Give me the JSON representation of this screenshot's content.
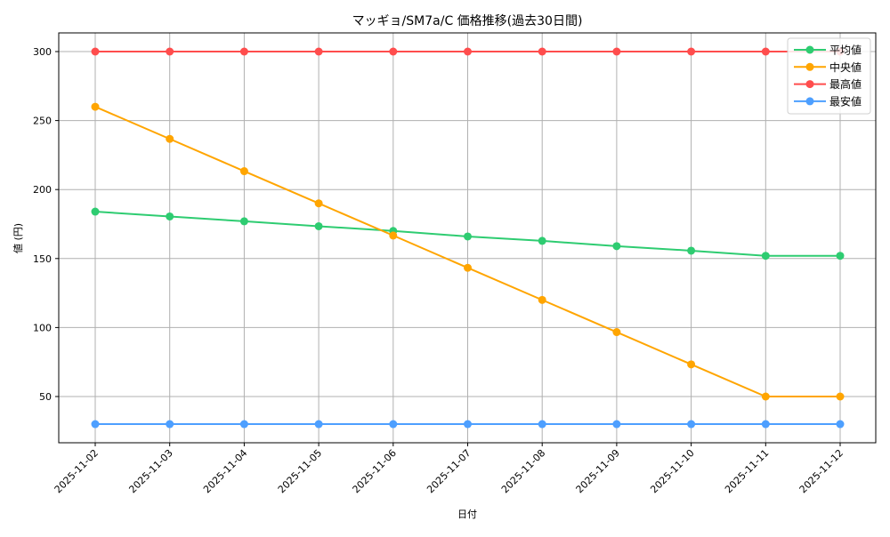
{
  "chart_data": {
    "type": "line",
    "title": "マッギョ/SM7a/C 価格推移(過去30日間)",
    "xlabel": "日付",
    "ylabel": "値 (円)",
    "x": [
      "2025-11-02",
      "2025-11-03",
      "2025-11-04",
      "2025-11-05",
      "2025-11-06",
      "2025-11-07",
      "2025-11-08",
      "2025-11-09",
      "2025-11-10",
      "2025-11-11",
      "2025-11-12"
    ],
    "series": [
      {
        "name": "平均値",
        "color": "#2ecc71",
        "values": [
          184,
          180.5,
          177,
          173.4,
          170,
          166,
          162.8,
          159,
          155.7,
          152,
          152
        ]
      },
      {
        "name": "中央値",
        "color": "#ffa500",
        "values": [
          260,
          236.7,
          213.3,
          190,
          166.7,
          143.3,
          120,
          96.7,
          73.3,
          50,
          50
        ]
      },
      {
        "name": "最高値",
        "color": "#ff4d4d",
        "values": [
          300,
          300,
          300,
          300,
          300,
          300,
          300,
          300,
          300,
          300,
          300
        ]
      },
      {
        "name": "最安値",
        "color": "#4d9fff",
        "values": [
          30,
          30,
          30,
          30,
          30,
          30,
          30,
          30,
          30,
          30,
          30
        ]
      }
    ],
    "yticks": [
      50,
      100,
      150,
      200,
      250,
      300
    ],
    "ylim": [
      16.5,
      313.5
    ],
    "grid": true,
    "legend_position": "upper right",
    "marker": "circle"
  }
}
